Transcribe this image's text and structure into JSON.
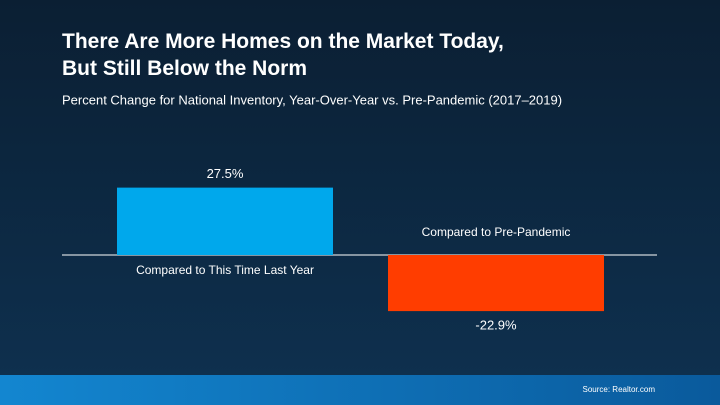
{
  "chart_data": {
    "type": "bar",
    "title": "There Are More Homes on the Market Today,\nBut Still Below the Norm",
    "subtitle": "Percent Change for National Inventory, Year-Over-Year vs. Pre-Pandemic (2017–2019)",
    "categories": [
      "Compared to This Time Last Year",
      "Compared to Pre-Pandemic"
    ],
    "values": [
      27.5,
      -22.9
    ],
    "value_labels": [
      "27.5%",
      "-22.9%"
    ],
    "colors": [
      "#00a8ec",
      "#ff3d00"
    ],
    "source": "Source: Realtor.com"
  }
}
